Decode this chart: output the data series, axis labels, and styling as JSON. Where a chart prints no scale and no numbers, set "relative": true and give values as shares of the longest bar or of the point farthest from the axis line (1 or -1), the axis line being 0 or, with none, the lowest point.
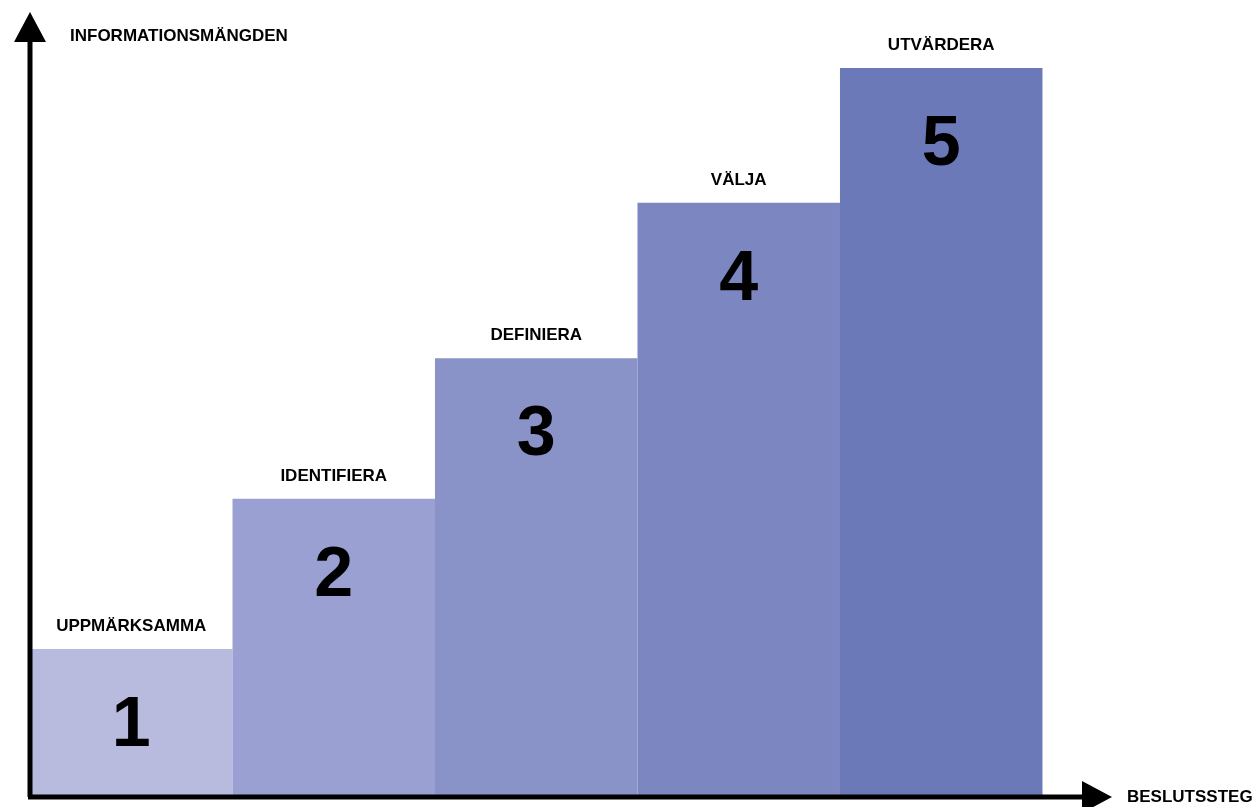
{
  "chart_data": {
    "type": "bar",
    "relative": true,
    "xlabel": "BESLUTSSTEG",
    "ylabel": "INFORMATIONSMÄNGDEN",
    "categories": [
      "UPPMÄRKSAMMA",
      "IDENTIFIERA",
      "DEFINIERA",
      "VÄLJA",
      "UTVÄRDERA"
    ],
    "values": [
      0.203,
      0.409,
      0.602,
      0.815,
      1
    ],
    "colors": [
      "#b8bade",
      "#9aa1d2",
      "#8a93c8",
      "#7c86c1",
      "#6c79b8"
    ],
    "annotations": [
      "1",
      "2",
      "3",
      "4",
      "5"
    ]
  }
}
